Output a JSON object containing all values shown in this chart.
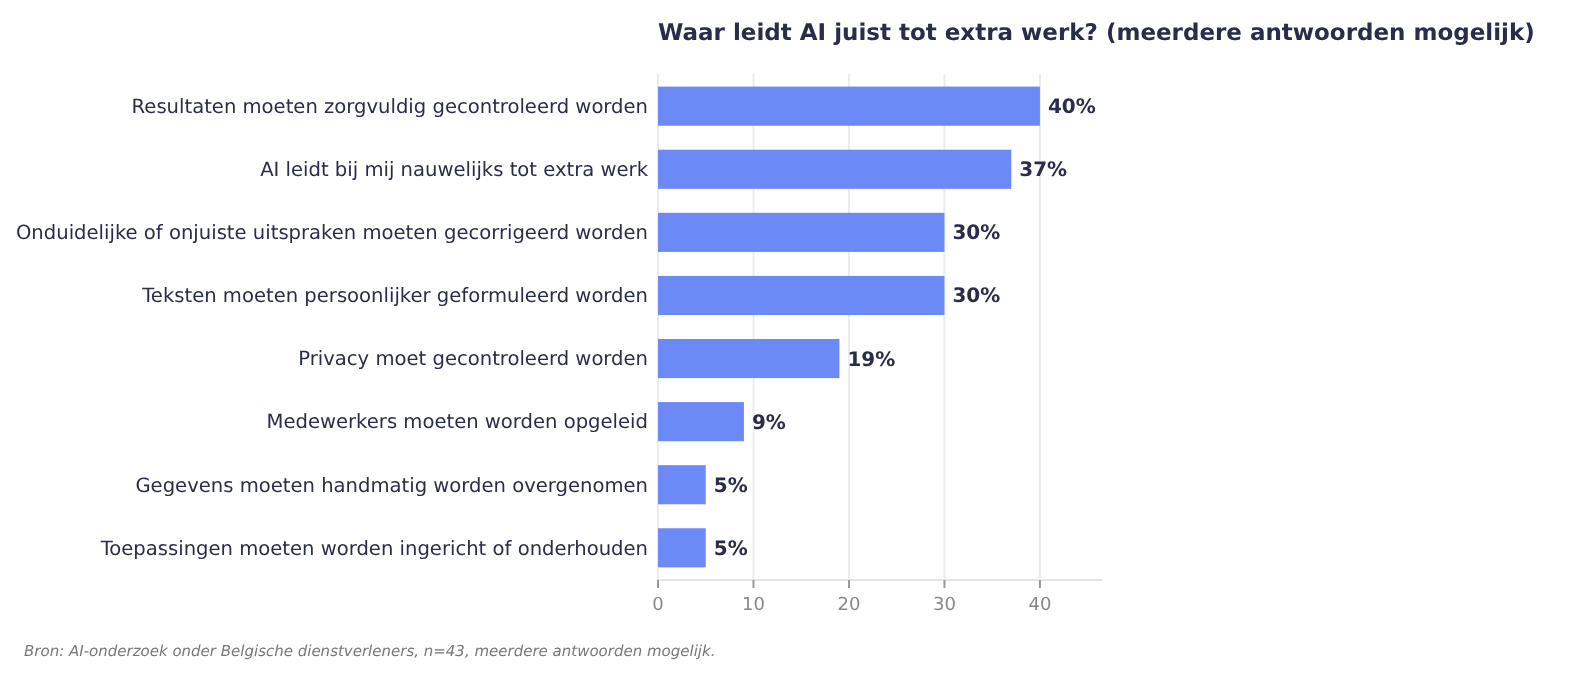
{
  "chart_data": {
    "type": "bar",
    "orientation": "horizontal",
    "title": "Waar leidt AI juist tot extra werk? (meerdere antwoorden mogelijk)",
    "categories": [
      "Resultaten moeten zorgvuldig gecontroleerd worden",
      "AI leidt bij mij nauwelijks tot extra werk",
      "Onduidelijke of onjuiste uitspraken moeten gecorrigeerd worden",
      "Teksten moeten persoonlijker geformuleerd worden",
      "Privacy moet gecontroleerd worden",
      "Medewerkers moeten worden opgeleid",
      "Gegevens moeten handmatig worden overgenomen",
      "Toepassingen moeten worden ingericht of onderhouden"
    ],
    "values": [
      40,
      37,
      30,
      30,
      19,
      9,
      5,
      5
    ],
    "value_labels": [
      "40%",
      "37%",
      "30%",
      "30%",
      "19%",
      "9%",
      "5%",
      "5%"
    ],
    "color": "#6b8af5",
    "xlim": [
      0,
      46.5
    ],
    "xticks": [
      0,
      10,
      20,
      30,
      40
    ],
    "grid": "x",
    "annotations": [
      "Bron: AI-onderzoek onder Belgische dienstverleners, n=43, meerdere antwoorden mogelijk."
    ]
  }
}
